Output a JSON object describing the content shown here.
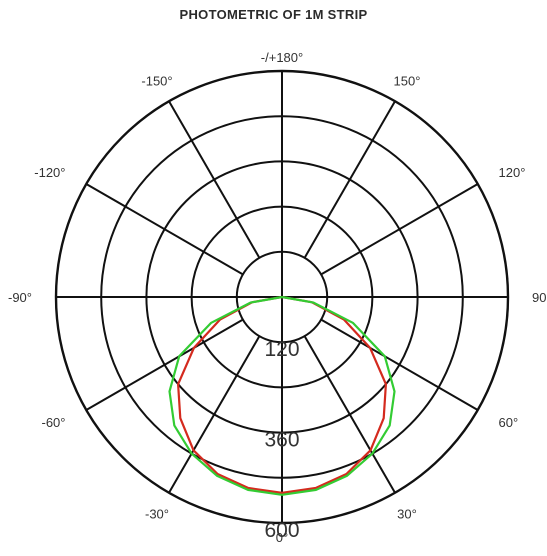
{
  "chart_data": {
    "type": "polar-line",
    "title": "PHOTOMETRIC OF 1M  STRIP",
    "angle_labels": [
      {
        "angle": 180,
        "text": "-/+180°"
      },
      {
        "angle": -150,
        "text": "-150°"
      },
      {
        "angle": 150,
        "text": "150°"
      },
      {
        "angle": -120,
        "text": "-120°"
      },
      {
        "angle": 120,
        "text": "120°"
      },
      {
        "angle": -90,
        "text": "-90°"
      },
      {
        "angle": 90,
        "text": "90°"
      },
      {
        "angle": -60,
        "text": "-60°"
      },
      {
        "angle": 60,
        "text": "60°"
      },
      {
        "angle": -30,
        "text": "-30°"
      },
      {
        "angle": 30,
        "text": "30°"
      },
      {
        "angle": 0,
        "text": "0°"
      }
    ],
    "radial_ticks": [
      {
        "value": 120,
        "text": "120"
      },
      {
        "value": 360,
        "text": "360"
      },
      {
        "value": 600,
        "text": "600"
      }
    ],
    "r_max": 600,
    "ring_values": [
      120,
      240,
      360,
      480,
      600
    ],
    "spoke_step_deg": 30,
    "grid": true,
    "legend": "none",
    "series": [
      {
        "color": "#d42a1e",
        "angles": [
          0,
          10,
          20,
          30,
          40,
          50,
          60,
          70,
          80,
          90,
          -10,
          -20,
          -30,
          -40,
          -50,
          -60,
          -70,
          -80,
          -90
        ],
        "values": [
          520,
          515,
          500,
          470,
          420,
          360,
          270,
          175,
          80,
          0,
          515,
          500,
          470,
          420,
          360,
          270,
          175,
          80,
          0
        ]
      },
      {
        "color": "#33cc33",
        "angles": [
          0,
          10,
          20,
          30,
          40,
          50,
          60,
          70,
          80,
          90,
          -10,
          -20,
          -30,
          -40,
          -50,
          -60,
          -70,
          -80,
          -90
        ],
        "values": [
          525,
          520,
          505,
          480,
          445,
          390,
          315,
          200,
          85,
          0,
          520,
          505,
          480,
          445,
          390,
          315,
          200,
          85,
          0
        ]
      }
    ]
  }
}
